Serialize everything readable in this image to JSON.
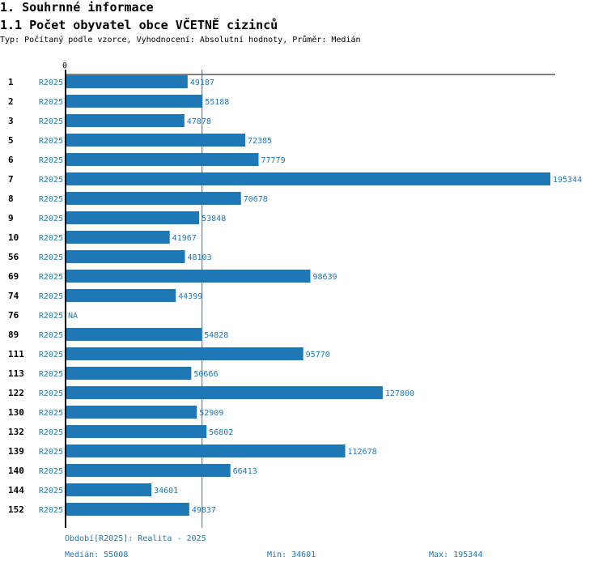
{
  "header": {
    "title": "1. Souhrnné informace",
    "subtitle": "1.1 Počet obyvatel obce VČETNĚ cizinců",
    "info": "Typ: Počítaný podle vzorce, Vyhodnocení: Absolutní hodnoty, Průměr: Medián"
  },
  "colors": {
    "bar": "#1f77b4",
    "text": "#1f77b4"
  },
  "chart_data": {
    "type": "bar",
    "orientation": "horizontal",
    "axis_zero_label": "0",
    "series_label": "R2025",
    "categories": [
      "1",
      "2",
      "3",
      "5",
      "6",
      "7",
      "8",
      "9",
      "10",
      "56",
      "69",
      "74",
      "76",
      "89",
      "111",
      "113",
      "122",
      "130",
      "132",
      "139",
      "140",
      "144",
      "152"
    ],
    "values": [
      49187,
      55188,
      47878,
      72385,
      77779,
      195344,
      70678,
      53848,
      41967,
      48103,
      98639,
      44399,
      null,
      54828,
      95770,
      50666,
      127800,
      52909,
      56802,
      112678,
      66413,
      34601,
      49837
    ],
    "na_label": "NA",
    "median": 55008,
    "xlim": [
      0,
      195344
    ]
  },
  "footer": {
    "period": "Období[R2025]: Realita - 2025",
    "median": "Medián: 55008",
    "min": "Min: 34601",
    "max": "Max: 195344"
  }
}
